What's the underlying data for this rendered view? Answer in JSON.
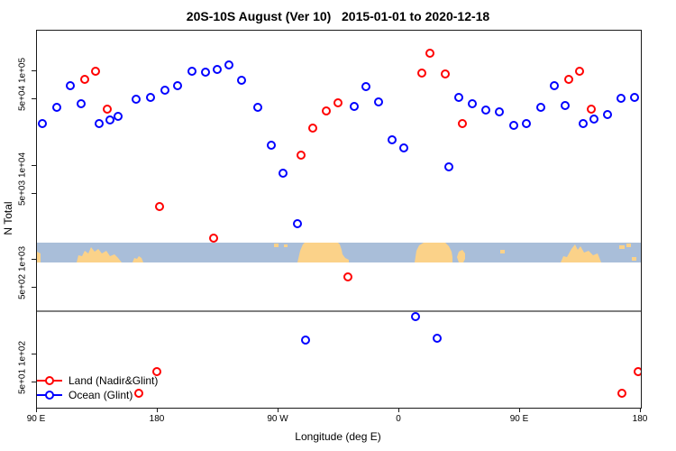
{
  "chart_data": {
    "type": "scatter",
    "title": "20S-10S August (Ver 10)   2015-01-01 to 2020-12-18",
    "xlabel": "Longitude (deg E)",
    "ylabel": "N Total",
    "x_axis": {
      "range_deg_east": [
        90,
        540
      ],
      "note_visible": "longitude axis runs eastward from 90 E through 180, 90 W, 0, 90 E to 180",
      "tick_lons": [
        90,
        180,
        270,
        360,
        450,
        540
      ],
      "tick_labels": [
        "90 E",
        "180",
        "90 W",
        "0",
        "90 E",
        "180"
      ]
    },
    "y_axis": {
      "scale": "log",
      "tick_values": [
        100000,
        50000,
        10000,
        5000,
        1000,
        500,
        100,
        50
      ],
      "tick_labels": [
        "1e+05",
        "5e+04",
        "1e+04",
        "5e+03",
        "1e+03",
        "5e+02",
        "1e+02",
        "5e+01"
      ]
    },
    "reference_line": {
      "n_value": 285,
      "color": "#808080"
    },
    "map_strip": {
      "description": "world-map band (20S-10S latitude strip) drawn across the plot",
      "n_range": [
        940,
        1520
      ],
      "ocean_color": "#A9BED9",
      "land_color": "#FBD289",
      "land_shapes": [
        {
          "left": 0,
          "width": 4,
          "poly": "0 10,4 12,4 22,0 22"
        },
        {
          "left": 44,
          "width": 50,
          "poly": "0 22,2 14,6 15,9 9,13 12,16 5,20 10,24 7,28 12,33 9,37 15,42 13,46 17,50 22"
        },
        {
          "left": 106,
          "width": 12,
          "poly": "0 22,2 17,5 18,7 15,10 17,12 22"
        },
        {
          "left": 263,
          "width": 5,
          "poly": "0 1,5 1,5 5,0 5"
        },
        {
          "left": 274,
          "width": 4,
          "poly": "0 2,4 2,4 5,0 5"
        },
        {
          "left": 289,
          "width": 57,
          "poly": "0 22,3 9,6 2,8 0,45 0,47 2,49 8,50 13,53 17,57 19,57 22"
        },
        {
          "left": 419,
          "width": 42,
          "poly": "0 22,2 9,5 3,10 0,34 0,38 4,41 10,42 16,42 22"
        },
        {
          "left": 466,
          "width": 10,
          "poly": "2 22,0 16,2 10,6 8,9 12,9 18,7 22"
        },
        {
          "left": 514,
          "width": 5,
          "poly": "0 8,5 8,5 12,0 12"
        },
        {
          "left": 581,
          "width": 45,
          "poly": "0 22,3 15,7 16,12 7,16 2,19 8,22 4,26 11,31 9,36 14,41 12,45 22"
        },
        {
          "left": 646,
          "width": 6,
          "poly": "0 3,6 3,6 7,0 7"
        },
        {
          "left": 654,
          "width": 5,
          "poly": "0 1,5 1,5 5,0 5"
        },
        {
          "left": 660,
          "width": 5,
          "poly": "0 16,5 16,5 20,0 20"
        }
      ]
    },
    "series": [
      {
        "name": "Land (Nadir&Glint)",
        "color": "#FF0000",
        "points_lon_n": [
          [
            125.6,
            82000
          ],
          [
            133.7,
            100000
          ],
          [
            142.4,
            39600
          ],
          [
            165.9,
            38
          ],
          [
            179.3,
            65
          ],
          [
            181.3,
            3670
          ],
          [
            221.6,
            1700
          ],
          [
            286.8,
            12900
          ],
          [
            295.5,
            25000
          ],
          [
            305.6,
            37900
          ],
          [
            314.3,
            46200
          ],
          [
            321.7,
            658
          ],
          [
            376.8,
            95700
          ],
          [
            382.8,
            155000
          ],
          [
            394.3,
            93500
          ],
          [
            407.0,
            27900
          ],
          [
            486.3,
            82000
          ],
          [
            494.3,
            100000
          ],
          [
            503.0,
            39600
          ],
          [
            525.9,
            38
          ],
          [
            538.0,
            65
          ]
        ]
      },
      {
        "name": "Ocean (Glint)",
        "color": "#0000FF",
        "points_lon_n": [
          [
            94.0,
            27900
          ],
          [
            104.8,
            41400
          ],
          [
            114.9,
            70300
          ],
          [
            122.9,
            45300
          ],
          [
            136.3,
            27900
          ],
          [
            144.4,
            30400
          ],
          [
            150.4,
            33300
          ],
          [
            163.9,
            50500
          ],
          [
            174.6,
            52700
          ],
          [
            185.4,
            63000
          ],
          [
            194.8,
            70300
          ],
          [
            205.5,
            100000
          ],
          [
            215.6,
            97800
          ],
          [
            224.3,
            104000
          ],
          [
            233.1,
            117000
          ],
          [
            242.5,
            80200
          ],
          [
            254.6,
            41400
          ],
          [
            264.6,
            16400
          ],
          [
            273.4,
            8300
          ],
          [
            284.1,
            2420
          ],
          [
            290.1,
            141
          ],
          [
            326.4,
            42400
          ],
          [
            335.2,
            68700
          ],
          [
            344.6,
            47300
          ],
          [
            354.6,
            18700
          ],
          [
            363.4,
            15400
          ],
          [
            372.1,
            250
          ],
          [
            388.2,
            147
          ],
          [
            396.9,
            9700
          ],
          [
            404.3,
            52700
          ],
          [
            414.4,
            45300
          ],
          [
            424.5,
            38800
          ],
          [
            434.5,
            37100
          ],
          [
            445.3,
            26700
          ],
          [
            454.7,
            27900
          ],
          [
            465.4,
            41400
          ],
          [
            475.5,
            70300
          ],
          [
            483.6,
            43300
          ],
          [
            497.0,
            27900
          ],
          [
            505.1,
            31100
          ],
          [
            515.1,
            34800
          ],
          [
            525.2,
            51600
          ],
          [
            535.3,
            52700
          ]
        ]
      }
    ]
  }
}
